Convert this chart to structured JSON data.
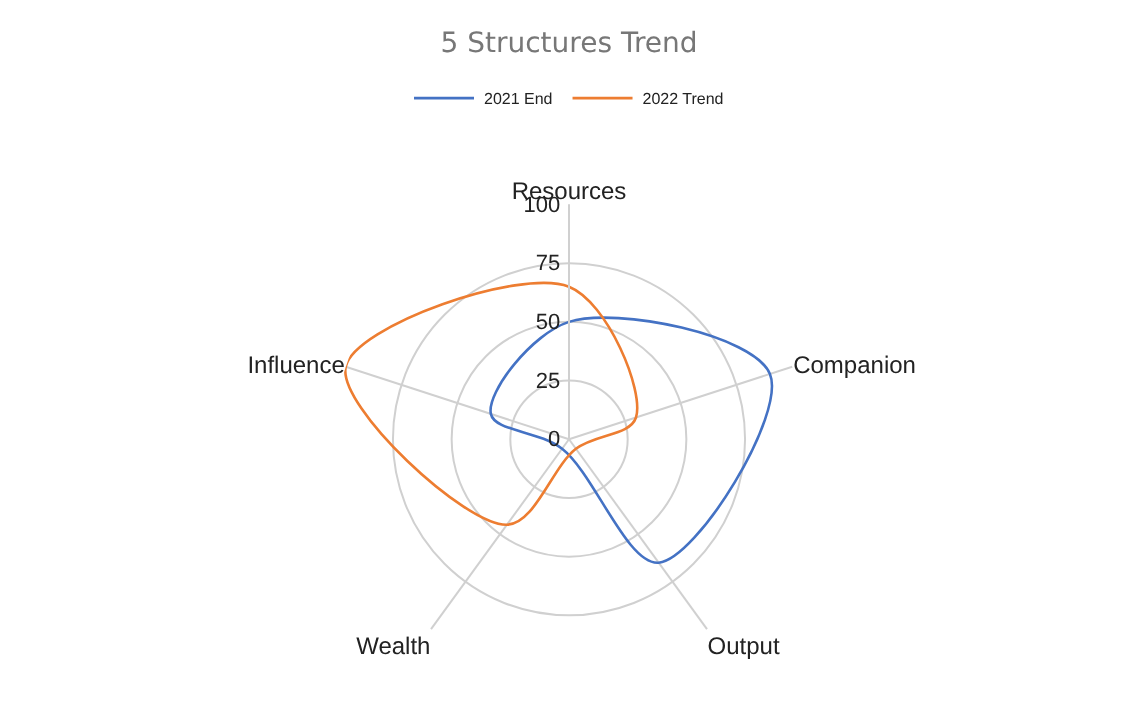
{
  "chart_data": {
    "type": "radar",
    "title": "5 Structures Trend",
    "categories": [
      "Resources",
      "Companion",
      "Output",
      "Wealth",
      "Influence"
    ],
    "series": [
      {
        "name": "2021 End",
        "color": "#4472c4",
        "values": [
          50,
          90,
          65,
          5,
          35
        ]
      },
      {
        "name": "2022 Trend",
        "color": "#ed7d31",
        "values": [
          65,
          30,
          5,
          45,
          100
        ]
      }
    ],
    "ylim": [
      0,
      100
    ],
    "yticks": [
      0,
      25,
      50,
      75,
      100
    ],
    "grid": true,
    "legend": "top",
    "marker": "none",
    "line_style": "solid"
  }
}
